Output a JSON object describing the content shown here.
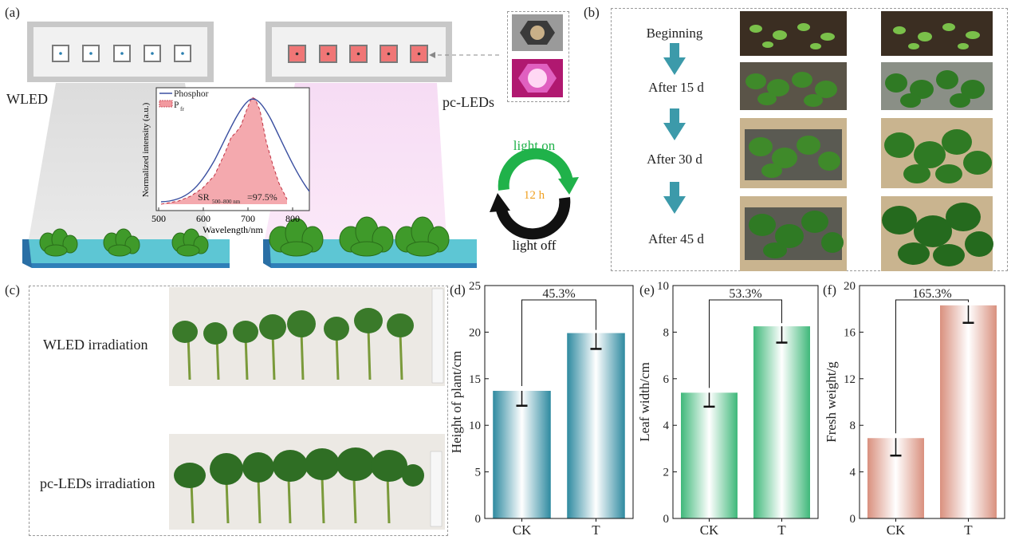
{
  "panel_labels": {
    "a": "(a)",
    "b": "(b)",
    "c": "(c)",
    "d": "(d)",
    "e": "(e)",
    "f": "(f)"
  },
  "panel_a": {
    "wled_label": "WLED",
    "pcled_label": "pc-LEDs",
    "inset": {
      "legend_phosphor": "Phosphor",
      "legend_pfr_main": "P",
      "legend_pfr_sub": "fr",
      "ylabel": "Normalized intensity (a.u.)",
      "xlabel": "Wavelength/nm",
      "xticks": [
        "500",
        "600",
        "700",
        "800"
      ],
      "sr_main": "SR",
      "sr_sub": "500–800 nm",
      "sr_value": "=97.5%"
    },
    "cycle": {
      "light_on": "light on",
      "duration": "12 h",
      "light_off": "light off"
    },
    "colors": {
      "phosphor": "#3a4fa0",
      "pfr": "#e0707a",
      "on": "#20b24a",
      "off": "#111111",
      "duration": "#f0a020"
    }
  },
  "panel_b": {
    "stages": [
      "Beginning",
      "After 15 d",
      "After 30 d",
      "After 45 d"
    ],
    "arrow_color": "#3c9aaa"
  },
  "panel_c": {
    "wled_label": "WLED irradiation",
    "pcled_label": "pc-LEDs irradiation"
  },
  "chart_data": [
    {
      "type": "bar",
      "panel": "(d)",
      "categories": [
        "CK",
        "T"
      ],
      "values": [
        13.7,
        19.9
      ],
      "errors": [
        1.6,
        1.7
      ],
      "ylabel": "Height of plant/cm",
      "ylim": [
        0,
        25
      ],
      "yticks": [
        "0",
        "5",
        "10",
        "15",
        "20",
        "25"
      ],
      "annotation": "45.3%",
      "color": "#2e8aa0"
    },
    {
      "type": "bar",
      "panel": "(e)",
      "categories": [
        "CK",
        "T"
      ],
      "values": [
        5.4,
        8.25
      ],
      "errors": [
        0.6,
        0.7
      ],
      "ylabel": "Leaf width/cm",
      "ylim": [
        0,
        10
      ],
      "yticks": [
        "0",
        "2",
        "4",
        "6",
        "8",
        "10"
      ],
      "annotation": "53.3%",
      "color": "#3fb87a"
    },
    {
      "type": "bar",
      "panel": "(f)",
      "categories": [
        "CK",
        "T"
      ],
      "values": [
        6.9,
        18.3
      ],
      "errors": [
        1.5,
        1.5
      ],
      "ylabel": "Fresh weight/g",
      "ylim": [
        0,
        20
      ],
      "yticks": [
        "0",
        "4",
        "8",
        "12",
        "16",
        "20"
      ],
      "annotation": "165.3%",
      "color": "#d9907e"
    }
  ]
}
